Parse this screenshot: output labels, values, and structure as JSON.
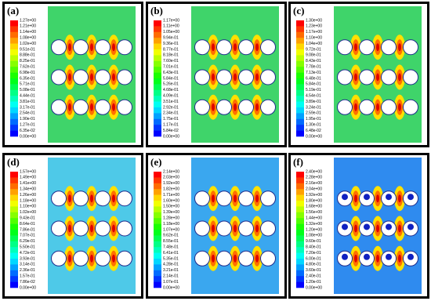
{
  "panels": [
    {
      "label": "(a)",
      "colorbar": [
        "1.27e+00",
        "1.21e+00",
        "1.14e+00",
        "1.08e+00",
        "1.02e+00",
        "9.51e-01",
        "8.88e-01",
        "8.25e-01",
        "7.62e-01",
        "6.98e-01",
        "6.35e-01",
        "5.71e-01",
        "5.08e-01",
        "4.44e-01",
        "3.81e-01",
        "3.17e-01",
        "2.54e-01",
        "1.90e-01",
        "1.27e-01",
        "6.35e-02",
        "0.00e+00"
      ]
    },
    {
      "label": "(b)",
      "colorbar": [
        "1.17e+00",
        "1.11e+00",
        "1.05e+00",
        "9.94e-01",
        "9.36e-01",
        "8.77e-01",
        "8.18e-01",
        "7.60e-01",
        "7.01e-01",
        "6.43e-01",
        "5.84e-01",
        "5.26e-01",
        "4.68e-01",
        "4.09e-01",
        "3.51e-01",
        "2.92e-01",
        "2.34e-01",
        "1.75e-01",
        "1.17e-01",
        "5.84e-02",
        "0.00e+00"
      ]
    },
    {
      "label": "(c)",
      "colorbar": [
        "1.30e+00",
        "1.23e+00",
        "1.17e+00",
        "1.10e+00",
        "1.04e+00",
        "9.72e-01",
        "9.08e-01",
        "8.43e-01",
        "7.78e-01",
        "7.13e-01",
        "6.48e-01",
        "5.84e-01",
        "5.19e-01",
        "4.54e-01",
        "3.89e-01",
        "3.24e-01",
        "2.59e-01",
        "1.95e-01",
        "1.30e-01",
        "6.48e-02",
        "0.00e+00"
      ]
    },
    {
      "label": "(d)",
      "colorbar": [
        "1.57e+00",
        "1.49e+00",
        "1.41e+00",
        "1.34e+00",
        "1.26e+00",
        "1.18e+00",
        "1.10e+00",
        "1.02e+00",
        "9.43e-01",
        "8.64e-01",
        "7.86e-01",
        "7.07e-01",
        "6.29e-01",
        "5.50e-01",
        "4.72e-01",
        "3.93e-01",
        "3.14e-01",
        "2.36e-01",
        "1.57e-01",
        "7.86e-02",
        "0.00e+00"
      ]
    },
    {
      "label": "(e)",
      "colorbar": [
        "2.14e+00",
        "2.03e+00",
        "1.92e+00",
        "1.82e+00",
        "1.71e+00",
        "1.60e+00",
        "1.50e+00",
        "1.39e+00",
        "1.28e+00",
        "1.18e+00",
        "1.07e+00",
        "9.62e-01",
        "8.55e-01",
        "7.48e-01",
        "6.41e-01",
        "5.35e-01",
        "4.28e-01",
        "3.21e-01",
        "2.14e-01",
        "1.07e-01",
        "0.00e+00"
      ]
    },
    {
      "label": "(f)",
      "colorbar": [
        "2.40e+00",
        "2.28e+00",
        "2.16e+00",
        "2.04e+00",
        "1.92e+00",
        "1.80e+00",
        "1.68e+00",
        "1.56e+00",
        "1.44e+00",
        "1.32e+00",
        "1.20e+00",
        "1.08e+00",
        "9.60e-01",
        "8.40e-01",
        "7.20e-01",
        "6.00e-01",
        "4.80e-01",
        "3.60e-01",
        "2.40e-01",
        "1.20e-01",
        "0.00e+00"
      ]
    }
  ]
}
